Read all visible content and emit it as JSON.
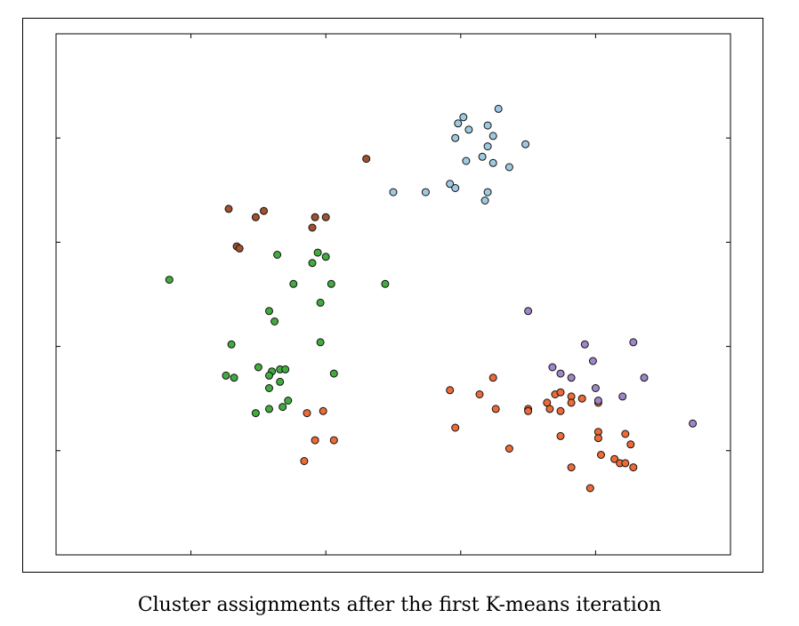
{
  "caption": "Cluster assignments after the first K-means iteration",
  "chart_data": {
    "type": "scatter",
    "title": "",
    "xlabel": "",
    "ylabel": "",
    "xlim": [
      -5,
      20
    ],
    "ylim": [
      -5,
      20
    ],
    "xticks": [
      0,
      5,
      10,
      15
    ],
    "yticks": [
      0,
      5,
      10,
      15
    ],
    "tick_labels_shown": false,
    "grid": false,
    "legend": false,
    "series": [
      {
        "color": "#9ecae1",
        "points": [
          [
            11.4,
            16.4
          ],
          [
            10.1,
            16.0
          ],
          [
            9.9,
            15.7
          ],
          [
            10.3,
            15.4
          ],
          [
            11.0,
            15.6
          ],
          [
            9.8,
            15.0
          ],
          [
            11.2,
            15.1
          ],
          [
            11.0,
            14.6
          ],
          [
            12.4,
            14.7
          ],
          [
            10.8,
            14.1
          ],
          [
            10.2,
            13.9
          ],
          [
            11.2,
            13.8
          ],
          [
            11.8,
            13.6
          ],
          [
            9.6,
            12.8
          ],
          [
            9.8,
            12.6
          ],
          [
            8.7,
            12.4
          ],
          [
            11.0,
            12.4
          ],
          [
            10.9,
            12.0
          ],
          [
            7.5,
            12.4
          ]
        ]
      },
      {
        "color": "#a0522d",
        "points": [
          [
            6.5,
            14.0
          ],
          [
            1.4,
            11.6
          ],
          [
            2.4,
            11.2
          ],
          [
            2.7,
            11.5
          ],
          [
            4.6,
            11.2
          ],
          [
            5.0,
            11.2
          ],
          [
            4.5,
            10.7
          ],
          [
            1.7,
            9.8
          ],
          [
            1.8,
            9.7
          ]
        ]
      },
      {
        "color": "#41ab3e",
        "points": [
          [
            -0.8,
            8.2
          ],
          [
            3.2,
            9.4
          ],
          [
            4.7,
            9.5
          ],
          [
            5.0,
            9.3
          ],
          [
            4.5,
            9.0
          ],
          [
            3.8,
            8.0
          ],
          [
            5.2,
            8.0
          ],
          [
            7.2,
            8.0
          ],
          [
            4.8,
            7.1
          ],
          [
            2.9,
            6.7
          ],
          [
            3.1,
            6.2
          ],
          [
            4.8,
            5.2
          ],
          [
            1.5,
            5.1
          ],
          [
            2.5,
            4.0
          ],
          [
            3.0,
            3.8
          ],
          [
            3.3,
            3.9
          ],
          [
            3.5,
            3.9
          ],
          [
            5.3,
            3.7
          ],
          [
            2.9,
            3.6
          ],
          [
            1.3,
            3.6
          ],
          [
            1.6,
            3.5
          ],
          [
            3.3,
            3.3
          ],
          [
            2.9,
            3.0
          ],
          [
            3.6,
            2.4
          ],
          [
            3.4,
            2.1
          ],
          [
            2.9,
            2.0
          ],
          [
            2.4,
            1.8
          ]
        ]
      },
      {
        "color": "#ee6a36",
        "points": [
          [
            4.3,
            1.8
          ],
          [
            4.9,
            1.9
          ],
          [
            4.6,
            0.5
          ],
          [
            5.3,
            0.5
          ],
          [
            4.2,
            -0.5
          ],
          [
            9.6,
            2.9
          ],
          [
            10.7,
            2.7
          ],
          [
            11.3,
            2.0
          ],
          [
            11.2,
            3.5
          ],
          [
            12.5,
            2.0
          ],
          [
            12.5,
            1.9
          ],
          [
            9.8,
            1.1
          ],
          [
            11.8,
            0.1
          ],
          [
            13.2,
            2.3
          ],
          [
            13.5,
            2.7
          ],
          [
            13.7,
            2.8
          ],
          [
            13.3,
            2.0
          ],
          [
            14.1,
            2.6
          ],
          [
            14.5,
            2.5
          ],
          [
            13.7,
            1.9
          ],
          [
            14.1,
            2.3
          ],
          [
            15.1,
            2.3
          ],
          [
            13.7,
            0.7
          ],
          [
            15.1,
            0.9
          ],
          [
            15.1,
            0.6
          ],
          [
            16.1,
            0.8
          ],
          [
            16.3,
            0.3
          ],
          [
            14.1,
            -0.8
          ],
          [
            15.2,
            -0.2
          ],
          [
            15.7,
            -0.4
          ],
          [
            15.9,
            -0.6
          ],
          [
            16.1,
            -0.6
          ],
          [
            16.4,
            -0.8
          ],
          [
            14.8,
            -1.8
          ]
        ]
      },
      {
        "color": "#9e86c8",
        "points": [
          [
            12.5,
            6.7
          ],
          [
            16.4,
            5.2
          ],
          [
            14.6,
            5.1
          ],
          [
            14.9,
            4.3
          ],
          [
            13.4,
            4.0
          ],
          [
            13.7,
            3.7
          ],
          [
            14.1,
            3.5
          ],
          [
            16.8,
            3.5
          ],
          [
            15.0,
            3.0
          ],
          [
            15.1,
            2.4
          ],
          [
            16.0,
            2.6
          ],
          [
            18.6,
            1.3
          ]
        ]
      }
    ]
  }
}
